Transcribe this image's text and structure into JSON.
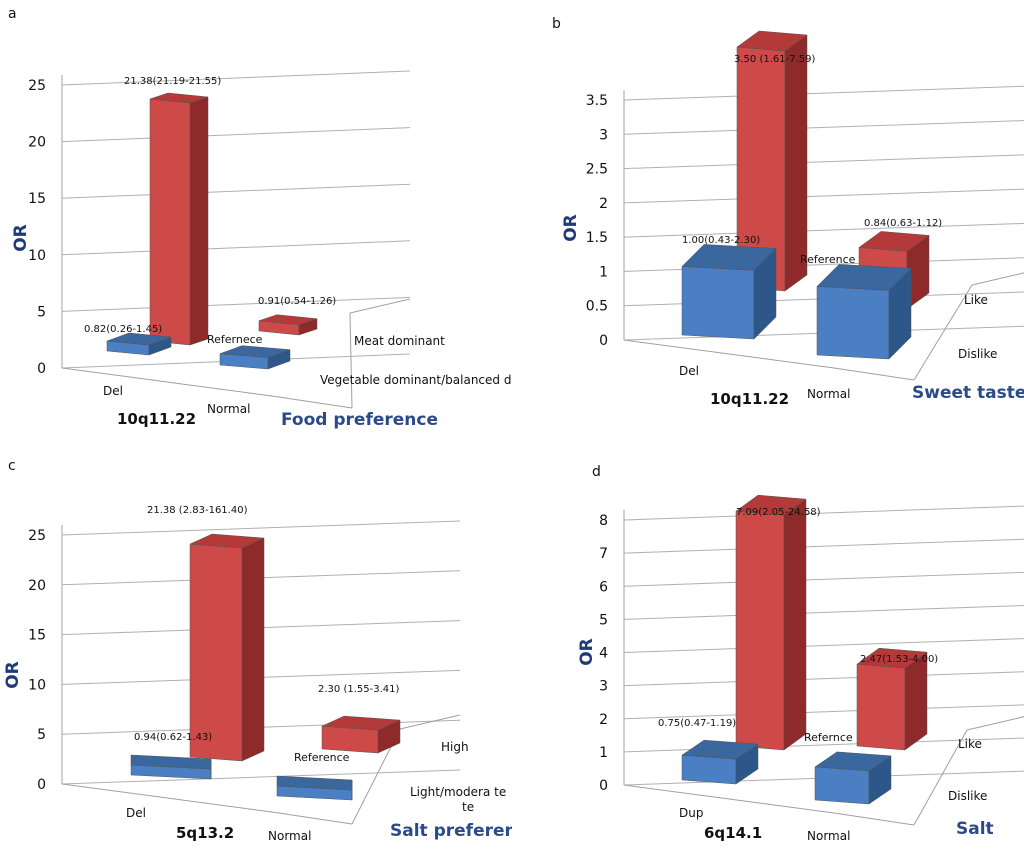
{
  "colors": {
    "red_front": "#cd4a48",
    "red_top": "#b33a38",
    "red_side": "#8e2a2a",
    "blue_front": "#4a7fc4",
    "blue_top": "#3a679e",
    "blue_side": "#2d5788",
    "ylabel": "#1f3a78",
    "ztitle": "#2a4a8a"
  },
  "chart_data": [
    {
      "panel_letter": "a",
      "type": "bar",
      "title": "",
      "ylabel": "OR",
      "ylim": [
        0,
        25
      ],
      "yticks": [
        "0",
        "5",
        "10",
        "15",
        "20",
        "25"
      ],
      "categories": [
        "Del",
        "Normal"
      ],
      "category_title": "10q11.22",
      "z_title": "Food preference",
      "series": [
        {
          "name": "Meat dominant",
          "values": [
            21.38,
            0.91
          ],
          "labels": [
            "21.38(21.19-21.55)",
            "0.91(0.54-1.26)"
          ],
          "color": "red"
        },
        {
          "name": "Vegetable dominant/balanced diet",
          "values": [
            0.82,
            1.0
          ],
          "labels": [
            "0.82(0.26-1.45)",
            "Refernece"
          ],
          "color": "blue"
        }
      ]
    },
    {
      "panel_letter": "b",
      "type": "bar",
      "title": "",
      "ylabel": "OR",
      "ylim": [
        0,
        3.5
      ],
      "yticks": [
        "0",
        "0.5",
        "1",
        "1.5",
        "2",
        "2.5",
        "3",
        "3.5"
      ],
      "categories": [
        "Del",
        "Normal"
      ],
      "category_title": "10q11.22",
      "z_title": "Sweet taste",
      "series": [
        {
          "name": "Like",
          "values": [
            3.5,
            0.84
          ],
          "labels": [
            "3.50 (1.61-7.59)",
            "0.84(0.63-1.12)"
          ],
          "color": "red"
        },
        {
          "name": "Dislike",
          "values": [
            1.0,
            1.0
          ],
          "labels": [
            "1.00(0.43-2.30)",
            "Reference"
          ],
          "color": "blue"
        }
      ]
    },
    {
      "panel_letter": "c",
      "type": "bar",
      "title": "",
      "ylabel": "OR",
      "ylim": [
        0,
        25
      ],
      "yticks": [
        "0",
        "5",
        "10",
        "15",
        "20",
        "25"
      ],
      "categories": [
        "Del",
        "Normal"
      ],
      "category_title": "5q13.2",
      "z_title": "Salt preference",
      "series": [
        {
          "name": "High",
          "values": [
            21.38,
            2.3
          ],
          "labels": [
            "21.38 (2.83-161.40)",
            "2.30 (1.55-3.41)"
          ],
          "color": "red"
        },
        {
          "name": "Light/modera te",
          "values": [
            0.94,
            1.0
          ],
          "labels": [
            "0.94(0.62-1.43)",
            "Reference"
          ],
          "color": "blue"
        }
      ]
    },
    {
      "panel_letter": "d",
      "type": "bar",
      "title": "",
      "ylabel": "OR",
      "ylim": [
        0,
        8
      ],
      "yticks": [
        "0",
        "1",
        "2",
        "3",
        "4",
        "5",
        "6",
        "7",
        "8"
      ],
      "categories": [
        "Dup",
        "Normal"
      ],
      "category_title": "6q14.1",
      "z_title": "Salt",
      "series": [
        {
          "name": "Like",
          "values": [
            7.09,
            2.47
          ],
          "labels": [
            "7.09(2.05-24.58)",
            "2.47(1.53-4.00)"
          ],
          "color": "red"
        },
        {
          "name": "Dislike",
          "values": [
            0.75,
            1.0
          ],
          "labels": [
            "0.75(0.47-1.19)",
            "Refernce"
          ],
          "color": "blue"
        }
      ]
    }
  ]
}
